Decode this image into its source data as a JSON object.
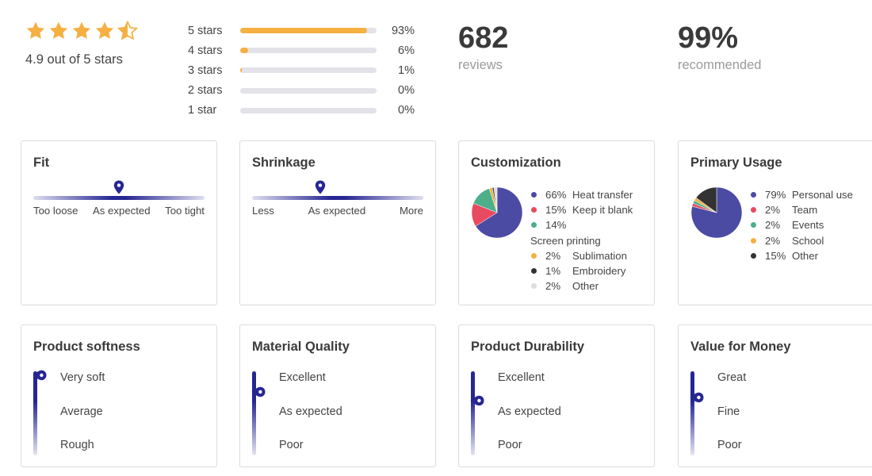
{
  "summary": {
    "rating_text": "4.9 out of 5 stars",
    "rating": 4.9,
    "star_color": "#f5b041",
    "distribution": [
      {
        "label": "5 stars",
        "pct_text": "93%",
        "pct": 93
      },
      {
        "label": "4 stars",
        "pct_text": "6%",
        "pct": 6
      },
      {
        "label": "3 stars",
        "pct_text": "1%",
        "pct": 1
      },
      {
        "label": "2 stars",
        "pct_text": "0%",
        "pct": 0
      },
      {
        "label": "1 star",
        "pct_text": "0%",
        "pct": 0
      }
    ],
    "reviews": {
      "value": "682",
      "label": "reviews"
    },
    "recommended": {
      "value": "99%",
      "label": "recommended"
    }
  },
  "accent_color": "#262693",
  "fit": {
    "title": "Fit",
    "level": 0.5,
    "labels": [
      "Too loose",
      "As expected",
      "Too tight"
    ]
  },
  "shrinkage": {
    "title": "Shrinkage",
    "level": 0.4,
    "labels": [
      "Less",
      "As expected",
      "More"
    ]
  },
  "customization": {
    "title": "Customization",
    "legend": [
      {
        "pct": "66%",
        "label": "Heat transfer",
        "color": "#4c4ba3"
      },
      {
        "pct": "15%",
        "label": "Keep it blank",
        "color": "#e84a5f"
      },
      {
        "pct": "14%",
        "label": "Screen printing",
        "color": "#4caf8a"
      },
      {
        "pct": "2%",
        "label": "Sublimation",
        "color": "#f5b041"
      },
      {
        "pct": "1%",
        "label": "Embroidery",
        "color": "#333333"
      },
      {
        "pct": "2%",
        "label": "Other",
        "color": "#dddddd"
      }
    ]
  },
  "primary_usage": {
    "title": "Primary Usage",
    "legend": [
      {
        "pct": "79%",
        "label": "Personal use",
        "color": "#4c4ba3"
      },
      {
        "pct": "2%",
        "label": "Team",
        "color": "#e84a5f"
      },
      {
        "pct": "2%",
        "label": "Events",
        "color": "#4caf8a"
      },
      {
        "pct": "2%",
        "label": "School",
        "color": "#f5b041"
      },
      {
        "pct": "15%",
        "label": "Other",
        "color": "#333333"
      }
    ]
  },
  "softness": {
    "title": "Product softness",
    "level": 1.0,
    "labels": [
      "Very soft",
      "Average",
      "Rough"
    ]
  },
  "material": {
    "title": "Material Quality",
    "level": 0.8,
    "labels": [
      "Excellent",
      "As expected",
      "Poor"
    ]
  },
  "durability": {
    "title": "Product Durability",
    "level": 0.7,
    "labels": [
      "Excellent",
      "As expected",
      "Poor"
    ]
  },
  "value": {
    "title": "Value for Money",
    "level": 0.74,
    "labels": [
      "Great",
      "Fine",
      "Poor"
    ]
  }
}
